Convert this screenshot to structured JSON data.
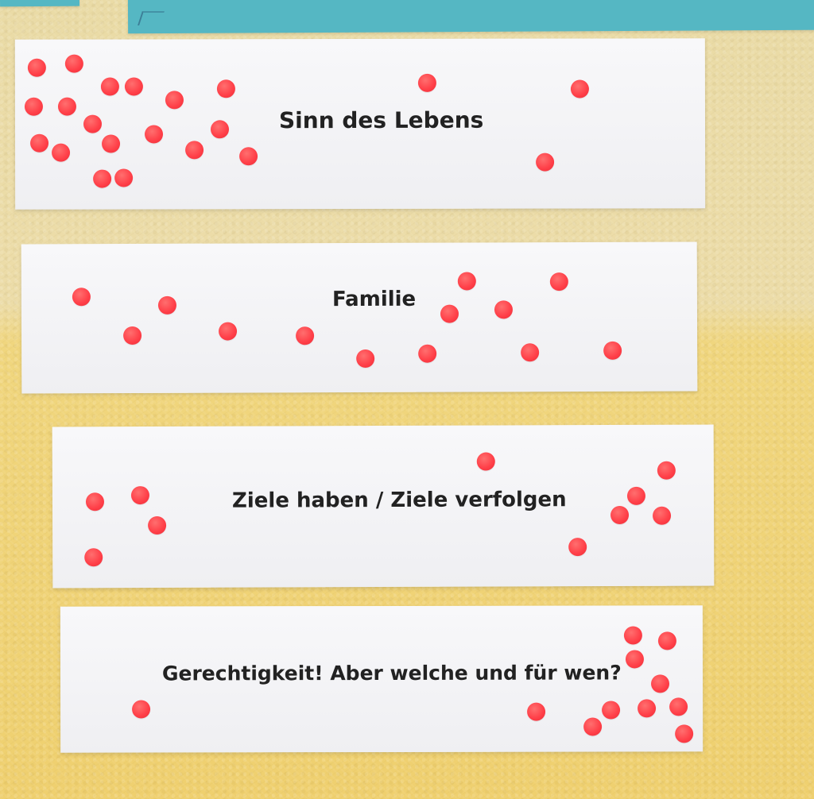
{
  "scene": {
    "wall_color_top": "#ecdca8",
    "wall_color_bottom": "#efd06f",
    "paper_color": "#f5f5f7",
    "dot_color": "#ff4650",
    "teal_paper_color": "#55b7c3"
  },
  "cards": [
    {
      "text": "Sinn des Lebens",
      "dot_count": 21
    },
    {
      "text": "Familie",
      "dot_count": 14
    },
    {
      "text": "Ziele haben / Ziele verfolgen",
      "dot_count": 11
    },
    {
      "text": "Gerechtigkeit! Aber welche und für wen?",
      "dot_count": 13
    }
  ]
}
